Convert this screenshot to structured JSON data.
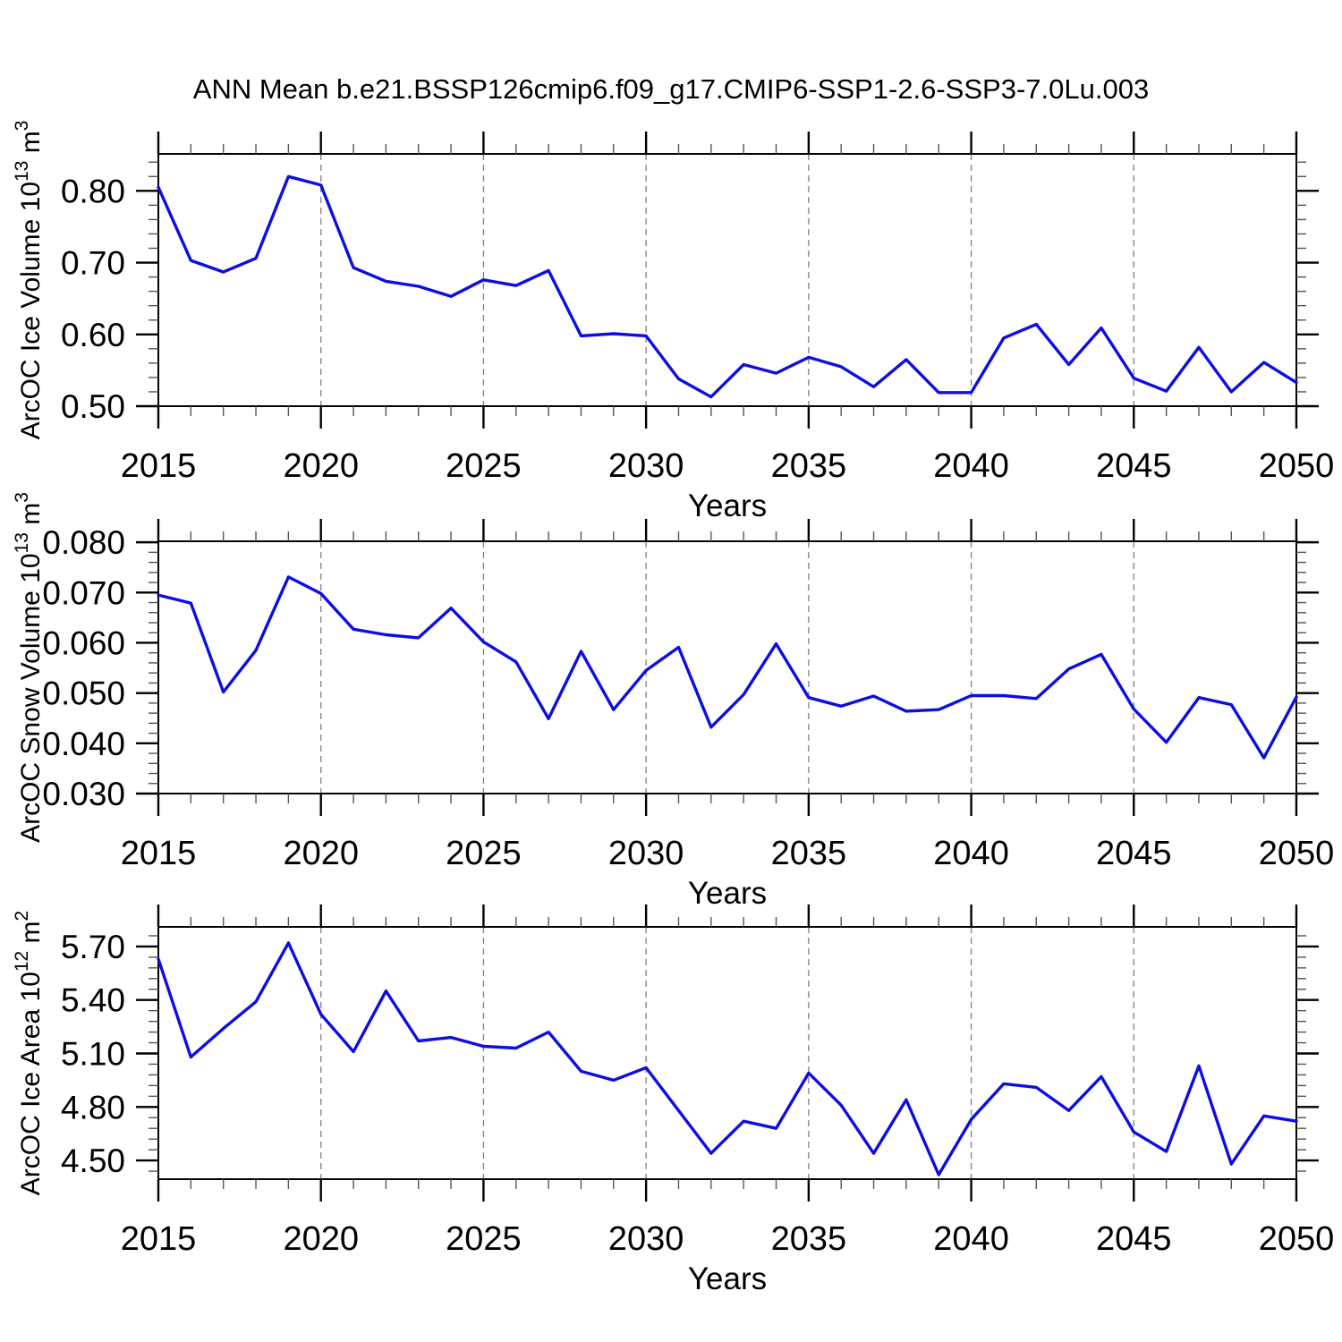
{
  "title": "ANN Mean b.e21.BSSP126cmip6.f09_g17.CMIP6-SSP1-2.6-SSP3-7.0Lu.003",
  "line_color": "#0D0DE3",
  "frame_color": "#000000",
  "grid_color": "#808080",
  "chart_data": [
    {
      "type": "line",
      "ylabel": "ArcOC Ice Volume 10^13 m^3",
      "xlabel": "Years",
      "x": [
        2015,
        2016,
        2017,
        2018,
        2019,
        2020,
        2021,
        2022,
        2023,
        2024,
        2025,
        2026,
        2027,
        2028,
        2029,
        2030,
        2031,
        2032,
        2033,
        2034,
        2035,
        2036,
        2037,
        2038,
        2039,
        2040,
        2041,
        2042,
        2043,
        2044,
        2045,
        2046,
        2047,
        2048,
        2049,
        2050
      ],
      "values": [
        0.805,
        0.703,
        0.687,
        0.706,
        0.82,
        0.808,
        0.693,
        0.674,
        0.667,
        0.653,
        0.676,
        0.668,
        0.689,
        0.598,
        0.601,
        0.598,
        0.538,
        0.513,
        0.558,
        0.546,
        0.568,
        0.555,
        0.527,
        0.565,
        0.519,
        0.519,
        0.595,
        0.614,
        0.558,
        0.609,
        0.539,
        0.521,
        0.582,
        0.52,
        0.561,
        0.533
      ],
      "xlim": [
        2015,
        2050
      ],
      "ylim": [
        0.5,
        0.8515
      ],
      "xticks": [
        2015,
        2020,
        2025,
        2030,
        2035,
        2040,
        2045,
        2050
      ],
      "x_minor_step": 1,
      "grid_years": [
        2020,
        2025,
        2030,
        2035,
        2040,
        2045
      ],
      "yticks": [
        0.5,
        0.6,
        0.7,
        0.8
      ],
      "ytick_labels": [
        "0.50",
        "0.60",
        "0.70",
        "0.80"
      ],
      "y_minor_step": 0.02
    },
    {
      "type": "line",
      "ylabel": "ArcOC Snow Volume 10^13 m^3",
      "xlabel": "Years",
      "x": [
        2015,
        2016,
        2017,
        2018,
        2019,
        2020,
        2021,
        2022,
        2023,
        2024,
        2025,
        2026,
        2027,
        2028,
        2029,
        2030,
        2031,
        2032,
        2033,
        2034,
        2035,
        2036,
        2037,
        2038,
        2039,
        2040,
        2041,
        2042,
        2043,
        2044,
        2045,
        2046,
        2047,
        2048,
        2049,
        2050
      ],
      "values": [
        0.0695,
        0.0679,
        0.0502,
        0.0585,
        0.0731,
        0.0698,
        0.0627,
        0.0616,
        0.061,
        0.0669,
        0.0602,
        0.0562,
        0.0449,
        0.0583,
        0.0467,
        0.0545,
        0.0591,
        0.0432,
        0.0497,
        0.0598,
        0.0491,
        0.0474,
        0.0494,
        0.0464,
        0.0467,
        0.0495,
        0.0495,
        0.0489,
        0.0548,
        0.0577,
        0.0468,
        0.0402,
        0.0491,
        0.0477,
        0.0371,
        0.0492
      ],
      "xlim": [
        2015,
        2050
      ],
      "ylim": [
        0.03,
        0.0802
      ],
      "xticks": [
        2015,
        2020,
        2025,
        2030,
        2035,
        2040,
        2045,
        2050
      ],
      "x_minor_step": 1,
      "grid_years": [
        2020,
        2025,
        2030,
        2035,
        2040,
        2045
      ],
      "yticks": [
        0.03,
        0.04,
        0.05,
        0.06,
        0.07,
        0.08
      ],
      "ytick_labels": [
        "0.030",
        "0.040",
        "0.050",
        "0.060",
        "0.070",
        "0.080"
      ],
      "y_minor_step": 0.002
    },
    {
      "type": "line",
      "ylabel": "ArcOC Ice Area 10^12 m^2",
      "xlabel": "Years",
      "x": [
        2015,
        2016,
        2017,
        2018,
        2019,
        2020,
        2021,
        2022,
        2023,
        2024,
        2025,
        2026,
        2027,
        2028,
        2029,
        2030,
        2031,
        2032,
        2033,
        2034,
        2035,
        2036,
        2037,
        2038,
        2039,
        2040,
        2041,
        2042,
        2043,
        2044,
        2045,
        2046,
        2047,
        2048,
        2049,
        2050
      ],
      "values": [
        5.63,
        5.08,
        5.24,
        5.39,
        5.72,
        5.32,
        5.11,
        5.45,
        5.17,
        5.19,
        5.14,
        5.13,
        5.22,
        5.0,
        4.95,
        5.02,
        4.78,
        4.54,
        4.72,
        4.68,
        4.99,
        4.81,
        4.54,
        4.84,
        4.42,
        4.73,
        4.93,
        4.91,
        4.78,
        4.97,
        4.66,
        4.55,
        5.03,
        4.48,
        4.75,
        4.72
      ],
      "xlim": [
        2015,
        2050
      ],
      "ylim": [
        4.395,
        5.81
      ],
      "xticks": [
        2015,
        2020,
        2025,
        2030,
        2035,
        2040,
        2045,
        2050
      ],
      "x_minor_step": 1,
      "grid_years": [
        2020,
        2025,
        2030,
        2035,
        2040,
        2045
      ],
      "yticks": [
        4.5,
        4.8,
        5.1,
        5.4,
        5.7
      ],
      "ytick_labels": [
        "4.50",
        "4.80",
        "5.10",
        "5.40",
        "5.70"
      ],
      "y_minor_step": 0.06
    }
  ]
}
